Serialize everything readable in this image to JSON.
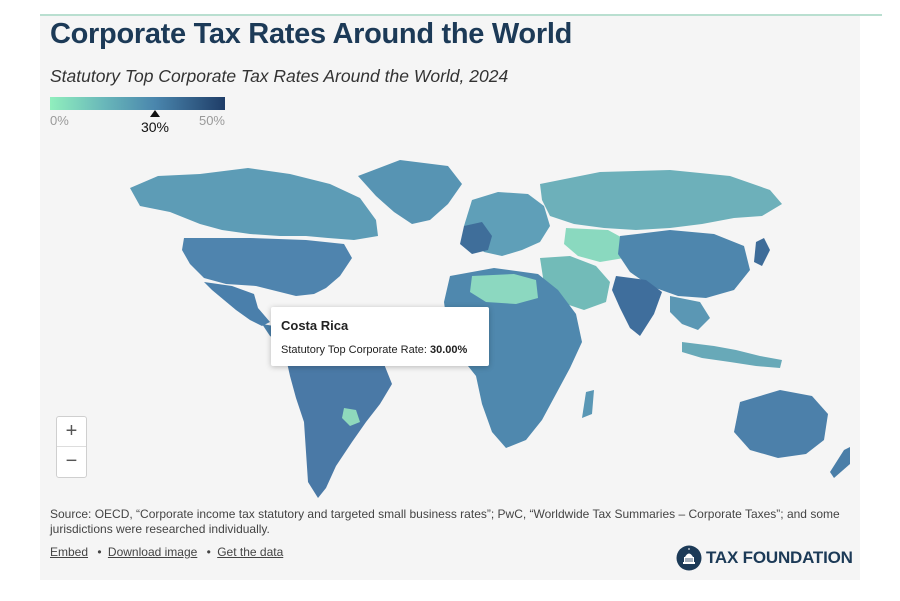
{
  "header": {
    "title": "Corporate Tax Rates Around the World",
    "subtitle": "Statutory Top Corporate Tax Rates Around the World, 2024"
  },
  "legend": {
    "min_label": "0%",
    "max_label": "50%",
    "marker_label": "30%",
    "marker_value": 30,
    "range": [
      0,
      50
    ],
    "colors": [
      "#90efbd",
      "#6ab9ba",
      "#4a86ad",
      "#1f3d68"
    ]
  },
  "zoom": {
    "in_label": "+",
    "out_label": "−"
  },
  "tooltip": {
    "title": "Costa Rica",
    "label": "Statutory Top Corporate Rate:",
    "value": "30.00%"
  },
  "source": {
    "text": "Source: OECD, “Corporate income tax statutory and targeted small business rates”; PwC, “Worldwide Tax Summaries – Corporate Taxes”; and some jurisdictions were researched individually."
  },
  "links": {
    "embed": "Embed",
    "download": "Download image",
    "data": "Get the data",
    "separator": "•"
  },
  "brand": {
    "name": "TAX FOUNDATION"
  },
  "colors": {
    "title": "#1c3a57",
    "background": "#f5f5f5",
    "accent_rule": "#b9dfd0"
  }
}
